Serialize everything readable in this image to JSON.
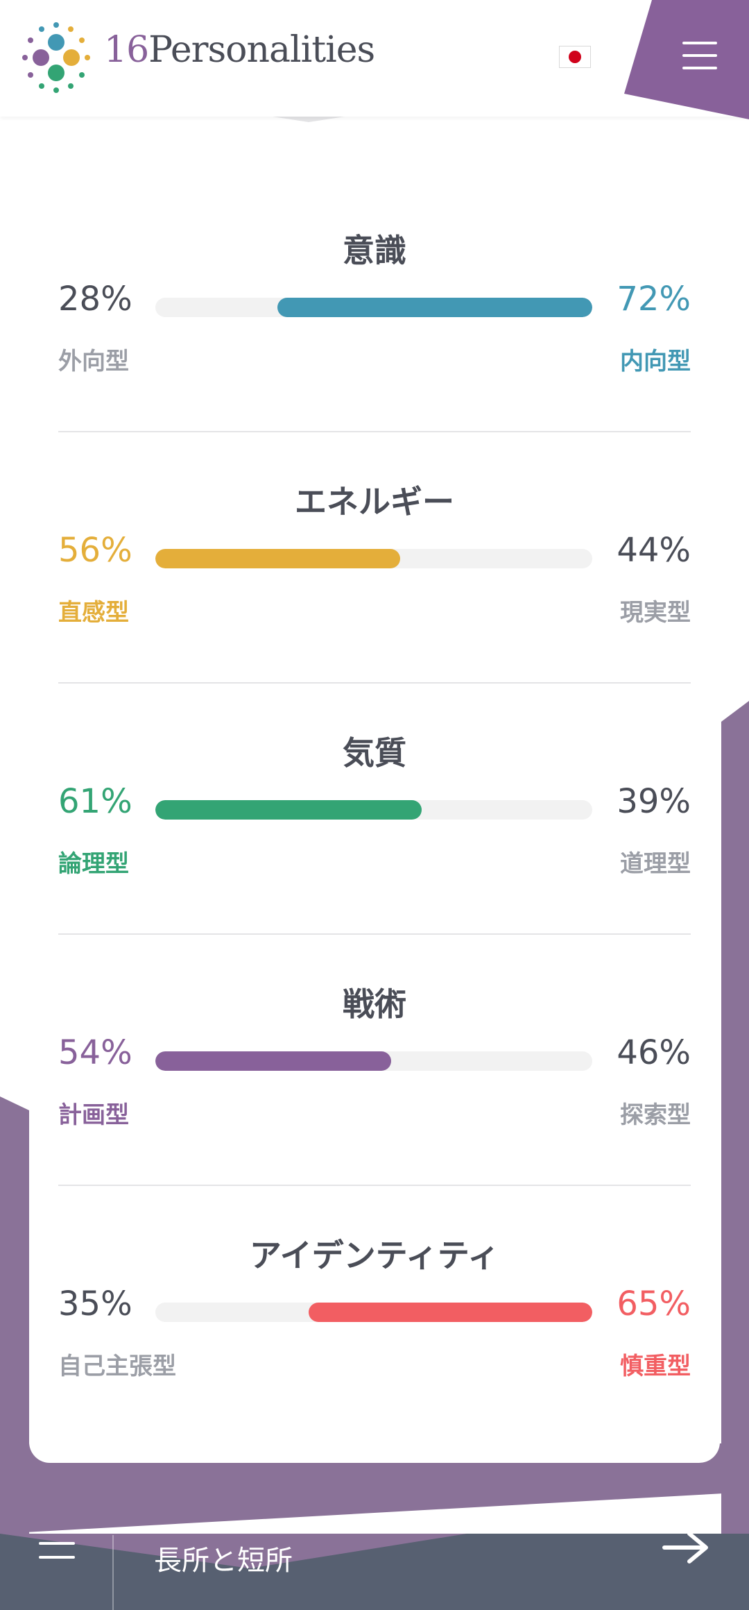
{
  "header": {
    "brand_num": "16",
    "brand_name": "Personalities",
    "language_flag": "japan-flag-icon",
    "menu_icon": "hamburger-icon"
  },
  "traits": [
    {
      "title": "意識",
      "left_pct": "28%",
      "right_pct": "72%",
      "left_label": "外向型",
      "right_label": "内向型",
      "dominant": "right",
      "right_value": 72,
      "color": "#4298b4"
    },
    {
      "title": "エネルギー",
      "left_pct": "56%",
      "right_pct": "44%",
      "left_label": "直感型",
      "right_label": "現実型",
      "dominant": "left",
      "left_value": 56,
      "color": "#e4ae3a"
    },
    {
      "title": "気質",
      "left_pct": "61%",
      "right_pct": "39%",
      "left_label": "論理型",
      "right_label": "道理型",
      "dominant": "left",
      "left_value": 61,
      "color": "#33a474"
    },
    {
      "title": "戦術",
      "left_pct": "54%",
      "right_pct": "46%",
      "left_label": "計画型",
      "right_label": "探索型",
      "dominant": "left",
      "left_value": 54,
      "color": "#88619a"
    },
    {
      "title": "アイデンティティ",
      "left_pct": "35%",
      "right_pct": "65%",
      "left_label": "自己主張型",
      "right_label": "慎重型",
      "dominant": "right",
      "right_value": 65,
      "color": "#f25e62"
    }
  ],
  "bottom_nav": {
    "menu_icon": "list-menu-icon",
    "title": "長所と短所",
    "arrow_icon": "arrow-right-icon"
  },
  "colors": {
    "brand_purple": "#88619a",
    "dark_text": "#4a4d57",
    "muted_text": "#9b9ea6",
    "nav_bg": "#576071",
    "bg_purple": "#8a7298"
  }
}
